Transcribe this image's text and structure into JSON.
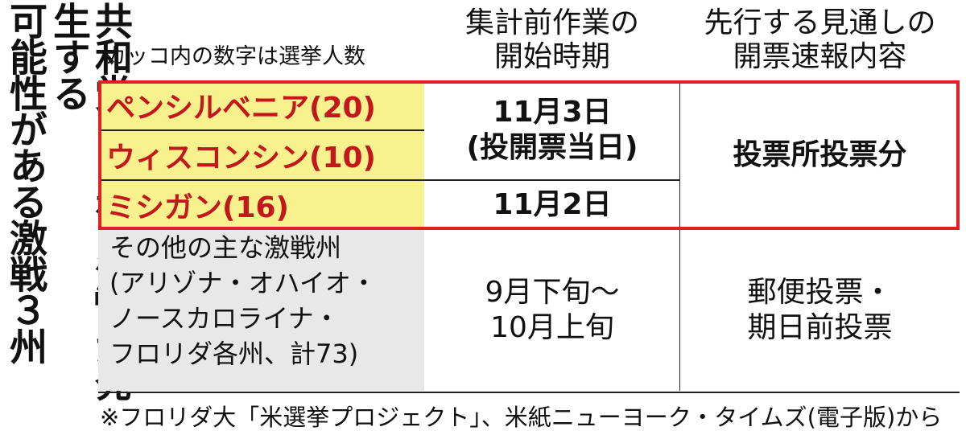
{
  "title": {
    "line1": "共和党の「赤い波」が発生する",
    "line2": "可能性がある激戦３州"
  },
  "note": "カッコ内の数字は選挙人数",
  "headers": {
    "col2": [
      "集計前作業の",
      "開始時期"
    ],
    "col3": [
      "先行する見通しの",
      "開票速報内容"
    ]
  },
  "rows": {
    "states": [
      "ペンシルベニア(20)",
      "ウィスコンシン(10)",
      "ミシガン(16)"
    ],
    "start_pa_wi": [
      "11月3日",
      "(投開票当日)"
    ],
    "start_mi": "11月2日",
    "content_main": "投票所投票分",
    "other_states": [
      "その他の主な激戦州",
      "(アリゾナ・オハイオ・",
      "ノースカロライナ・",
      "フロリダ各州、計73)"
    ],
    "other_start": [
      "9月下旬〜",
      "10月上旬"
    ],
    "other_content": [
      "郵便投票・",
      "期日前投票"
    ]
  },
  "footnote": "※フロリダ大「米選挙プロジェクト」、米紙ニューヨーク・タイムズ(電子版)から",
  "colors": {
    "highlight": "#f7f28e",
    "red": "#e02020",
    "state_text": "#c4171c",
    "gray": "#e8e8e8"
  }
}
